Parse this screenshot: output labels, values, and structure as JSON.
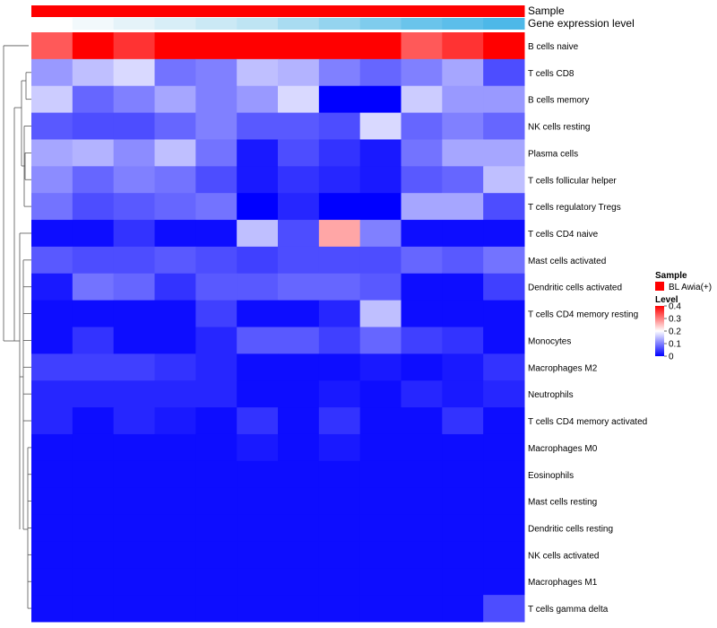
{
  "chart_data": {
    "type": "heatmap",
    "annotation_tracks": [
      {
        "label": "Sample",
        "colors": [
          "#FF0000",
          "#FF0000",
          "#FF0000",
          "#FF0000",
          "#FF0000",
          "#FF0000",
          "#FF0000",
          "#FF0000",
          "#FF0000",
          "#FF0000",
          "#FF0000",
          "#FF0000"
        ]
      },
      {
        "label": "Gene expression level",
        "colors": [
          "#FFFFFF",
          "#F2F9FC",
          "#E5F3F9",
          "#D8EEF7",
          "#CBE9F5",
          "#BEE4F3",
          "#A9DCF1",
          "#94D4EF",
          "#7FCCED",
          "#6AC4EB",
          "#5CBEEA",
          "#4DB8E8"
        ]
      }
    ],
    "rows": [
      "B cells naive",
      "T cells CD8",
      "B cells memory",
      "NK cells resting",
      "Plasma cells",
      "T cells follicular helper",
      "T cells regulatory  Tregs",
      "T cells CD4 naive",
      "Mast cells activated",
      "Dendritic cells activated",
      "T cells CD4 memory resting",
      "Monocytes",
      "Macrophages M2",
      "Neutrophils",
      "T cells CD4 memory activated",
      "Macrophages M0",
      "Eosinophils",
      "Mast cells resting",
      "Dendritic cells resting",
      "NK cells activated",
      "Macrophages M1",
      "T cells gamma delta"
    ],
    "columns": 12,
    "values": [
      [
        0.33,
        0.42,
        0.36,
        0.4,
        0.44,
        0.44,
        0.4,
        0.42,
        0.43,
        0.33,
        0.36,
        0.4
      ],
      [
        0.12,
        0.15,
        0.17,
        0.09,
        0.1,
        0.15,
        0.14,
        0.1,
        0.08,
        0.1,
        0.13,
        0.06
      ],
      [
        0.16,
        0.08,
        0.1,
        0.13,
        0.1,
        0.12,
        0.17,
        0.0,
        0.0,
        0.16,
        0.12,
        0.12
      ],
      [
        0.07,
        0.06,
        0.06,
        0.08,
        0.1,
        0.07,
        0.07,
        0.06,
        0.17,
        0.08,
        0.1,
        0.08
      ],
      [
        0.13,
        0.14,
        0.11,
        0.15,
        0.09,
        0.02,
        0.06,
        0.04,
        0.02,
        0.09,
        0.13,
        0.13
      ],
      [
        0.11,
        0.08,
        0.1,
        0.09,
        0.06,
        0.02,
        0.04,
        0.03,
        0.02,
        0.07,
        0.08,
        0.15
      ],
      [
        0.09,
        0.06,
        0.07,
        0.08,
        0.09,
        0.0,
        0.03,
        0.0,
        0.0,
        0.13,
        0.13,
        0.06
      ],
      [
        0.01,
        0.01,
        0.04,
        0.01,
        0.01,
        0.15,
        0.06,
        0.27,
        0.1,
        0.01,
        0.01,
        0.01
      ],
      [
        0.07,
        0.06,
        0.06,
        0.07,
        0.06,
        0.05,
        0.06,
        0.06,
        0.06,
        0.08,
        0.07,
        0.09
      ],
      [
        0.02,
        0.09,
        0.08,
        0.04,
        0.07,
        0.07,
        0.08,
        0.08,
        0.07,
        0.01,
        0.01,
        0.05
      ],
      [
        0.01,
        0.01,
        0.01,
        0.01,
        0.05,
        0.01,
        0.01,
        0.03,
        0.15,
        0.01,
        0.01,
        0.01
      ],
      [
        0.01,
        0.04,
        0.01,
        0.01,
        0.03,
        0.07,
        0.07,
        0.05,
        0.08,
        0.05,
        0.04,
        0.01
      ],
      [
        0.05,
        0.05,
        0.05,
        0.04,
        0.03,
        0.01,
        0.01,
        0.01,
        0.02,
        0.01,
        0.02,
        0.04
      ],
      [
        0.03,
        0.03,
        0.03,
        0.03,
        0.03,
        0.01,
        0.01,
        0.02,
        0.01,
        0.03,
        0.02,
        0.03
      ],
      [
        0.03,
        0.01,
        0.03,
        0.02,
        0.01,
        0.04,
        0.01,
        0.04,
        0.01,
        0.01,
        0.04,
        0.01
      ],
      [
        0.01,
        0.01,
        0.01,
        0.01,
        0.01,
        0.02,
        0.01,
        0.02,
        0.01,
        0.01,
        0.01,
        0.01
      ],
      [
        0.01,
        0.01,
        0.01,
        0.01,
        0.01,
        0.01,
        0.01,
        0.01,
        0.01,
        0.01,
        0.01,
        0.01
      ],
      [
        0.01,
        0.01,
        0.01,
        0.01,
        0.01,
        0.01,
        0.01,
        0.01,
        0.01,
        0.01,
        0.01,
        0.01
      ],
      [
        0.01,
        0.01,
        0.01,
        0.01,
        0.01,
        0.01,
        0.01,
        0.01,
        0.01,
        0.01,
        0.01,
        0.01
      ],
      [
        0.01,
        0.01,
        0.01,
        0.01,
        0.01,
        0.01,
        0.01,
        0.01,
        0.01,
        0.01,
        0.01,
        0.01
      ],
      [
        0.01,
        0.01,
        0.01,
        0.01,
        0.01,
        0.01,
        0.01,
        0.01,
        0.01,
        0.01,
        0.01,
        0.01
      ],
      [
        0.01,
        0.01,
        0.01,
        0.01,
        0.01,
        0.01,
        0.01,
        0.01,
        0.01,
        0.01,
        0.01,
        0.06
      ]
    ],
    "color_scale": {
      "stops": [
        {
          "value": 0.0,
          "color": "#0000FF"
        },
        {
          "value": 0.2,
          "color": "#FFFFFF"
        },
        {
          "value": 0.4,
          "color": "#FF0000"
        }
      ]
    },
    "legend": {
      "placement": "right",
      "sample_title": "Sample",
      "sample_entry": {
        "label": "BL Awia(+)",
        "color": "#FF0000"
      },
      "level_title": "Level",
      "level_ticks": [
        "0.4",
        "0.3",
        "0.2",
        "0.1",
        "0"
      ],
      "level_tick_values": [
        0.4,
        0.3,
        0.2,
        0.1,
        0.0
      ]
    },
    "row_dendrogram": true
  }
}
